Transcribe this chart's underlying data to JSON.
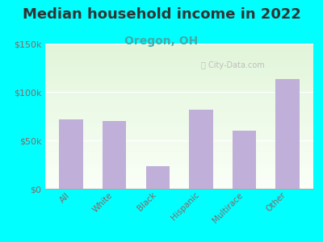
{
  "title": "Median household income in 2022",
  "subtitle": "Oregon, OH",
  "categories": [
    "All",
    "White",
    "Black",
    "Hispanic",
    "Multirace",
    "Other"
  ],
  "values": [
    72000,
    70000,
    23000,
    82000,
    60000,
    113000
  ],
  "bar_color": "#c0afd8",
  "title_fontsize": 13,
  "subtitle_fontsize": 10,
  "subtitle_color": "#44aaaa",
  "title_color": "#333333",
  "background_color": "#00ffff",
  "tick_label_color": "#886666",
  "ylim": [
    0,
    150000
  ],
  "yticks": [
    0,
    50000,
    100000,
    150000
  ],
  "ytick_labels": [
    "$0",
    "$50k",
    "$100k",
    "$150k"
  ],
  "watermark": "City-Data.com",
  "grid_color": "#dddddd"
}
